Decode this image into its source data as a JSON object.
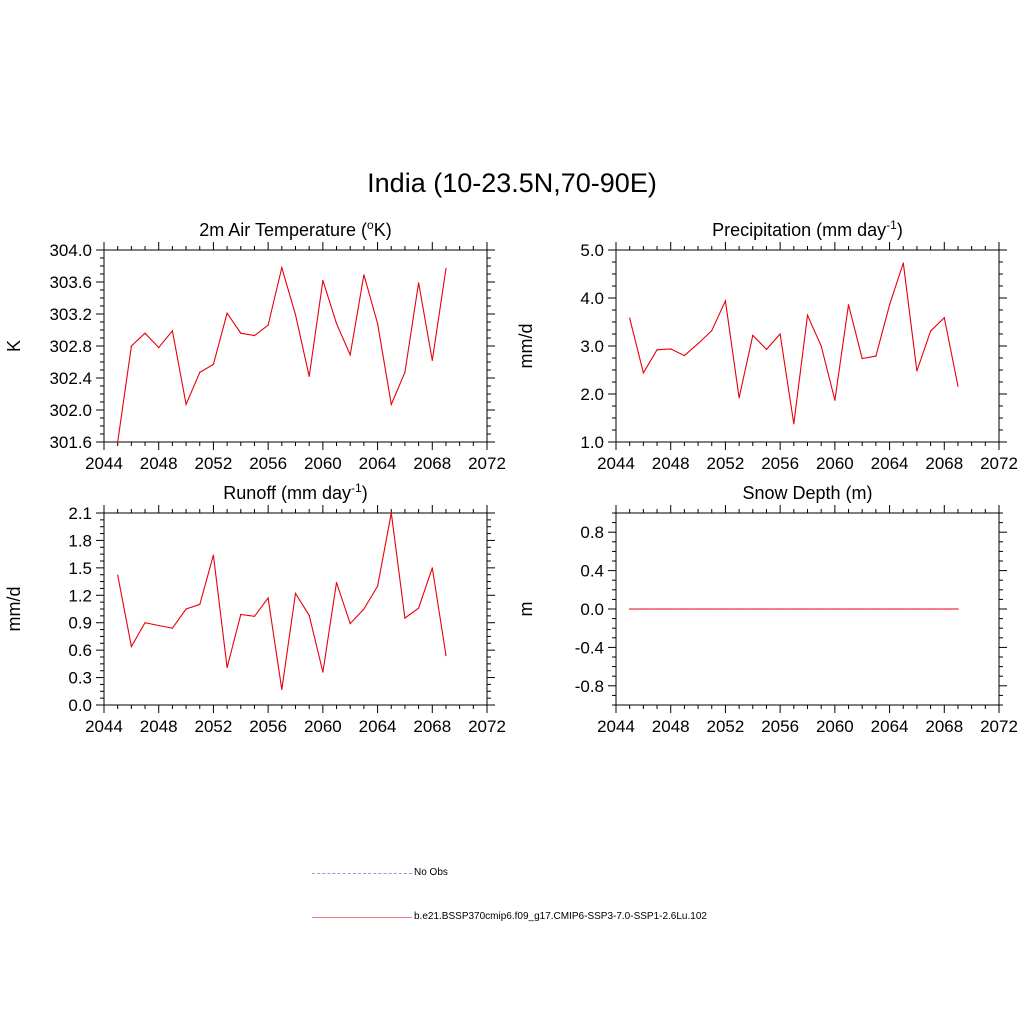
{
  "title": "India (10-23.5N,70-90E)",
  "colors": {
    "series": "#e8000b",
    "obs": "#9999dd"
  },
  "legend": {
    "items": [
      {
        "label": "No Obs",
        "style": "dashed",
        "color": "#9999dd"
      },
      {
        "label": "b.e21.BSSP370cmip6.f09_g17.CMIP6-SSP3-7.0-SSP1-2.6Lu.102",
        "style": "solid",
        "color": "#f08080"
      }
    ]
  },
  "chart_data": [
    {
      "type": "line",
      "title": "2m Air Temperature (",
      "title_sup": "o",
      "title_tail": "K)",
      "ylabel": "K",
      "xlim": [
        2044,
        2072
      ],
      "ylim": [
        301.6,
        304.0
      ],
      "xticks": [
        2044,
        2048,
        2052,
        2056,
        2060,
        2064,
        2068,
        2072
      ],
      "yticks": [
        301.6,
        302.0,
        302.4,
        302.8,
        303.2,
        303.6,
        304.0
      ],
      "ytick_labels": [
        "301.6",
        "302.0",
        "302.4",
        "302.8",
        "303.2",
        "303.6",
        "304.0"
      ],
      "x": [
        2045,
        2046,
        2047,
        2048,
        2049,
        2050,
        2051,
        2052,
        2053,
        2054,
        2055,
        2056,
        2057,
        2058,
        2059,
        2060,
        2061,
        2062,
        2063,
        2064,
        2065,
        2066,
        2067,
        2068,
        2069
      ],
      "y": [
        301.6,
        302.8,
        302.96,
        302.78,
        302.99,
        302.07,
        302.47,
        302.57,
        303.21,
        302.96,
        302.93,
        303.06,
        303.78,
        303.19,
        302.42,
        303.62,
        303.08,
        302.69,
        303.69,
        303.08,
        302.07,
        302.47,
        303.59,
        302.62,
        303.77
      ]
    },
    {
      "type": "line",
      "title": "Precipitation (mm day",
      "title_sup": "-1",
      "title_tail": ")",
      "ylabel": "mm/d",
      "xlim": [
        2044,
        2072
      ],
      "ylim": [
        1.0,
        5.0
      ],
      "xticks": [
        2044,
        2048,
        2052,
        2056,
        2060,
        2064,
        2068,
        2072
      ],
      "yticks": [
        1.0,
        2.0,
        3.0,
        4.0,
        5.0
      ],
      "ytick_labels": [
        "1.0",
        "2.0",
        "3.0",
        "4.0",
        "5.0"
      ],
      "x": [
        2045,
        2046,
        2047,
        2048,
        2049,
        2050,
        2051,
        2052,
        2053,
        2054,
        2055,
        2056,
        2057,
        2058,
        2059,
        2060,
        2061,
        2062,
        2063,
        2064,
        2065,
        2066,
        2067,
        2068,
        2069
      ],
      "y": [
        3.58,
        2.44,
        2.92,
        2.94,
        2.8,
        3.05,
        3.32,
        3.94,
        1.92,
        3.22,
        2.93,
        3.25,
        1.38,
        3.64,
        3.0,
        1.87,
        3.86,
        2.74,
        2.79,
        3.86,
        4.73,
        2.48,
        3.31,
        3.59,
        2.16
      ]
    },
    {
      "type": "line",
      "title": "Runoff (mm day",
      "title_sup": "-1",
      "title_tail": ")",
      "ylabel": "mm/d",
      "xlim": [
        2044,
        2072
      ],
      "ylim": [
        0.0,
        2.1
      ],
      "xticks": [
        2044,
        2048,
        2052,
        2056,
        2060,
        2064,
        2068,
        2072
      ],
      "yticks": [
        0.0,
        0.3,
        0.6,
        0.9,
        1.2,
        1.5,
        1.8,
        2.1
      ],
      "ytick_labels": [
        "0.0",
        "0.3",
        "0.6",
        "0.9",
        "1.2",
        "1.5",
        "1.8",
        "2.1"
      ],
      "x": [
        2045,
        2046,
        2047,
        2048,
        2049,
        2050,
        2051,
        2052,
        2053,
        2054,
        2055,
        2056,
        2057,
        2058,
        2059,
        2060,
        2061,
        2062,
        2063,
        2064,
        2065,
        2066,
        2067,
        2068,
        2069
      ],
      "y": [
        1.42,
        0.64,
        0.9,
        0.87,
        0.84,
        1.05,
        1.1,
        1.64,
        0.41,
        0.99,
        0.97,
        1.17,
        0.17,
        1.22,
        0.98,
        0.36,
        1.34,
        0.89,
        1.05,
        1.3,
        2.1,
        0.95,
        1.06,
        1.5,
        0.54
      ]
    },
    {
      "type": "line",
      "title": "Snow Depth (m)",
      "title_sup": "",
      "title_tail": "",
      "ylabel": "m",
      "xlim": [
        2044,
        2072
      ],
      "ylim": [
        -1.0,
        1.0
      ],
      "xticks": [
        2044,
        2048,
        2052,
        2056,
        2060,
        2064,
        2068,
        2072
      ],
      "yticks": [
        -0.8,
        -0.4,
        0.0,
        0.4,
        0.8
      ],
      "ytick_labels": [
        "-0.8",
        "-0.4",
        "0.0",
        "0.4",
        "0.8"
      ],
      "x": [
        2045,
        2046,
        2047,
        2048,
        2049,
        2050,
        2051,
        2052,
        2053,
        2054,
        2055,
        2056,
        2057,
        2058,
        2059,
        2060,
        2061,
        2062,
        2063,
        2064,
        2065,
        2066,
        2067,
        2068,
        2069
      ],
      "y": [
        0,
        0,
        0,
        0,
        0,
        0,
        0,
        0,
        0,
        0,
        0,
        0,
        0,
        0,
        0,
        0,
        0,
        0,
        0,
        0,
        0,
        0,
        0,
        0,
        0
      ]
    }
  ]
}
